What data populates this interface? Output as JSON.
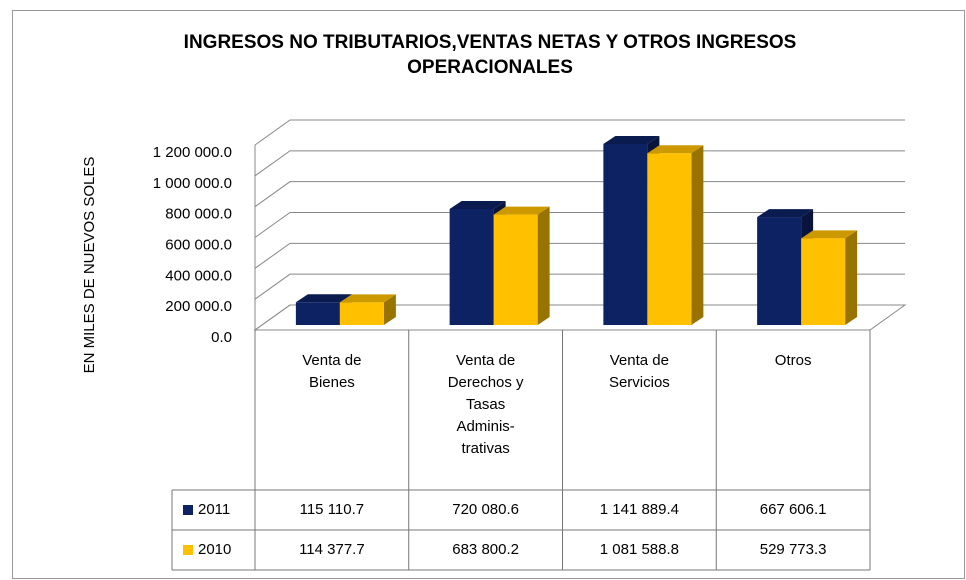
{
  "chart_data": {
    "type": "bar3d",
    "title": "INGRESOS NO TRIBUTARIOS,VENTAS NETAS Y OTROS INGRESOS OPERACIONALES",
    "y_axis_label": "EN MILES DE NUEVOS SOLES",
    "categories": [
      "Venta de Bienes",
      "Venta de Derechos y Tasas Adminis- trativas",
      "Venta de Servicios",
      "Otros"
    ],
    "series": [
      {
        "name": "2011",
        "color": "#0d2263",
        "values": [
          115110.7,
          720080.6,
          1141889.4,
          667606.1
        ],
        "value_labels": [
          "115 110.7",
          "720 080.6",
          "1 141 889.4",
          "667 606.1"
        ]
      },
      {
        "name": "2010",
        "color": "#ffc000",
        "values": [
          114377.7,
          683800.2,
          1081588.8,
          529773.3
        ],
        "value_labels": [
          "114 377.7",
          "683 800.2",
          "1 081 588.8",
          "529 773.3"
        ]
      }
    ],
    "ylim": [
      0,
      1200000
    ],
    "yticks": [
      {
        "value": 0,
        "label": "0.0"
      },
      {
        "value": 200000,
        "label": "200 000.0"
      },
      {
        "value": 400000,
        "label": "400 000.0"
      },
      {
        "value": 600000,
        "label": "600 000.0"
      },
      {
        "value": 800000,
        "label": "800 000.0"
      },
      {
        "value": 1000000,
        "label": "1 000 000.0"
      },
      {
        "value": 1200000,
        "label": "1 200 000.0"
      }
    ],
    "grid": true,
    "data_table": true
  }
}
